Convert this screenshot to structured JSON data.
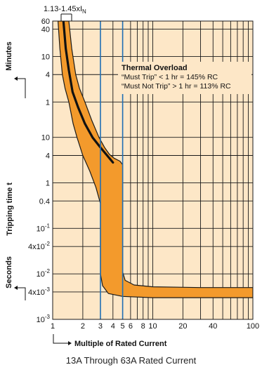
{
  "chart_data": {
    "type": "area",
    "title": "",
    "xlabel": "Multiple of Rated Current",
    "ylabel": "Tripping time t",
    "xscale": "log",
    "yscale": "log",
    "xlim": [
      1,
      100
    ],
    "ylim_seconds": [
      0.001,
      3600
    ],
    "y_segments": [
      "Seconds",
      "Minutes"
    ],
    "top_label": {
      "main": "1.13-1.45xI",
      "sub": "N"
    },
    "x_ticks": [
      {
        "value": 1,
        "label": "1"
      },
      {
        "value": 2,
        "label": "2"
      },
      {
        "value": 3,
        "label": "3",
        "highlight": true
      },
      {
        "value": 4,
        "label": "4"
      },
      {
        "value": 5,
        "label": "5",
        "highlight": true
      },
      {
        "value": 6,
        "label": "6"
      },
      {
        "value": 8,
        "label": "8"
      },
      {
        "value": 10,
        "label": "10"
      },
      {
        "value": 20,
        "label": "20"
      },
      {
        "value": 40,
        "label": "40"
      },
      {
        "value": 100,
        "label": "100"
      }
    ],
    "y_ticks": [
      {
        "seconds": 3600,
        "label": "60"
      },
      {
        "seconds": 2400,
        "label": "40"
      },
      {
        "seconds": 600,
        "label": "10"
      },
      {
        "seconds": 240,
        "label": "4"
      },
      {
        "seconds": 60,
        "label": "1"
      },
      {
        "seconds": 10,
        "label": "10"
      },
      {
        "seconds": 4,
        "label": "4"
      },
      {
        "seconds": 1,
        "label": "1"
      },
      {
        "seconds": 0.4,
        "label": "0.4"
      },
      {
        "seconds": 0.1,
        "label": "10",
        "exp": "-1"
      },
      {
        "seconds": 0.04,
        "label": "4x10",
        "exp": "-2"
      },
      {
        "seconds": 0.01,
        "label": "10",
        "exp": "-2"
      },
      {
        "seconds": 0.004,
        "label": "4x10",
        "exp": "-3"
      },
      {
        "seconds": 0.001,
        "label": "10",
        "exp": "-3"
      }
    ],
    "series": [
      {
        "role": "band-upper",
        "points": [
          [
            1.45,
            3600
          ],
          [
            1.55,
            900
          ],
          [
            1.7,
            240
          ],
          [
            1.85,
            120
          ],
          [
            2.1,
            60
          ],
          [
            2.45,
            24
          ],
          [
            2.9,
            10
          ],
          [
            3.3,
            6
          ],
          [
            3.7,
            4.2
          ],
          [
            4.1,
            3.5
          ],
          [
            4.7,
            3.0
          ],
          [
            5.0,
            2.5
          ],
          [
            5.0,
            0.011
          ],
          [
            5.3,
            0.0072
          ],
          [
            6.5,
            0.0057
          ],
          [
            10,
            0.0052
          ],
          [
            30,
            0.005
          ],
          [
            100,
            0.005
          ]
        ]
      },
      {
        "role": "band-lower",
        "points": [
          [
            1.13,
            3600
          ],
          [
            1.18,
            900
          ],
          [
            1.25,
            240
          ],
          [
            1.33,
            120
          ],
          [
            1.45,
            60
          ],
          [
            1.6,
            20
          ],
          [
            1.75,
            10
          ],
          [
            2.0,
            4
          ],
          [
            2.35,
            1.8
          ],
          [
            2.7,
            0.8
          ],
          [
            3.0,
            0.35
          ],
          [
            3.0,
            0.01
          ],
          [
            3.15,
            0.0055
          ],
          [
            3.6,
            0.0037
          ],
          [
            5,
            0.0032
          ],
          [
            10,
            0.003
          ],
          [
            100,
            0.003
          ]
        ]
      },
      {
        "role": "center",
        "points": [
          [
            1.28,
            3600
          ],
          [
            1.35,
            900
          ],
          [
            1.45,
            300
          ],
          [
            1.58,
            100
          ],
          [
            1.8,
            45
          ],
          [
            2.1,
            20
          ],
          [
            2.5,
            10
          ],
          [
            3.0,
            6
          ],
          [
            3.5,
            4
          ],
          [
            4.0,
            2.8
          ]
        ]
      }
    ],
    "highlight_lines_x": [
      3,
      5
    ],
    "annotation": {
      "title": "Thermal Overload",
      "lines": [
        "“Must Trip” < 1 hr = 145% RC",
        "“Must Not Trip” > 1 hr = 113% RC"
      ]
    },
    "colors": {
      "band": "#f39a2c",
      "background": "#fde7c7",
      "highlight": "#1f6fb5",
      "grid": "#1a1a1a"
    }
  },
  "caption": "13A Through 63A Rated Current"
}
